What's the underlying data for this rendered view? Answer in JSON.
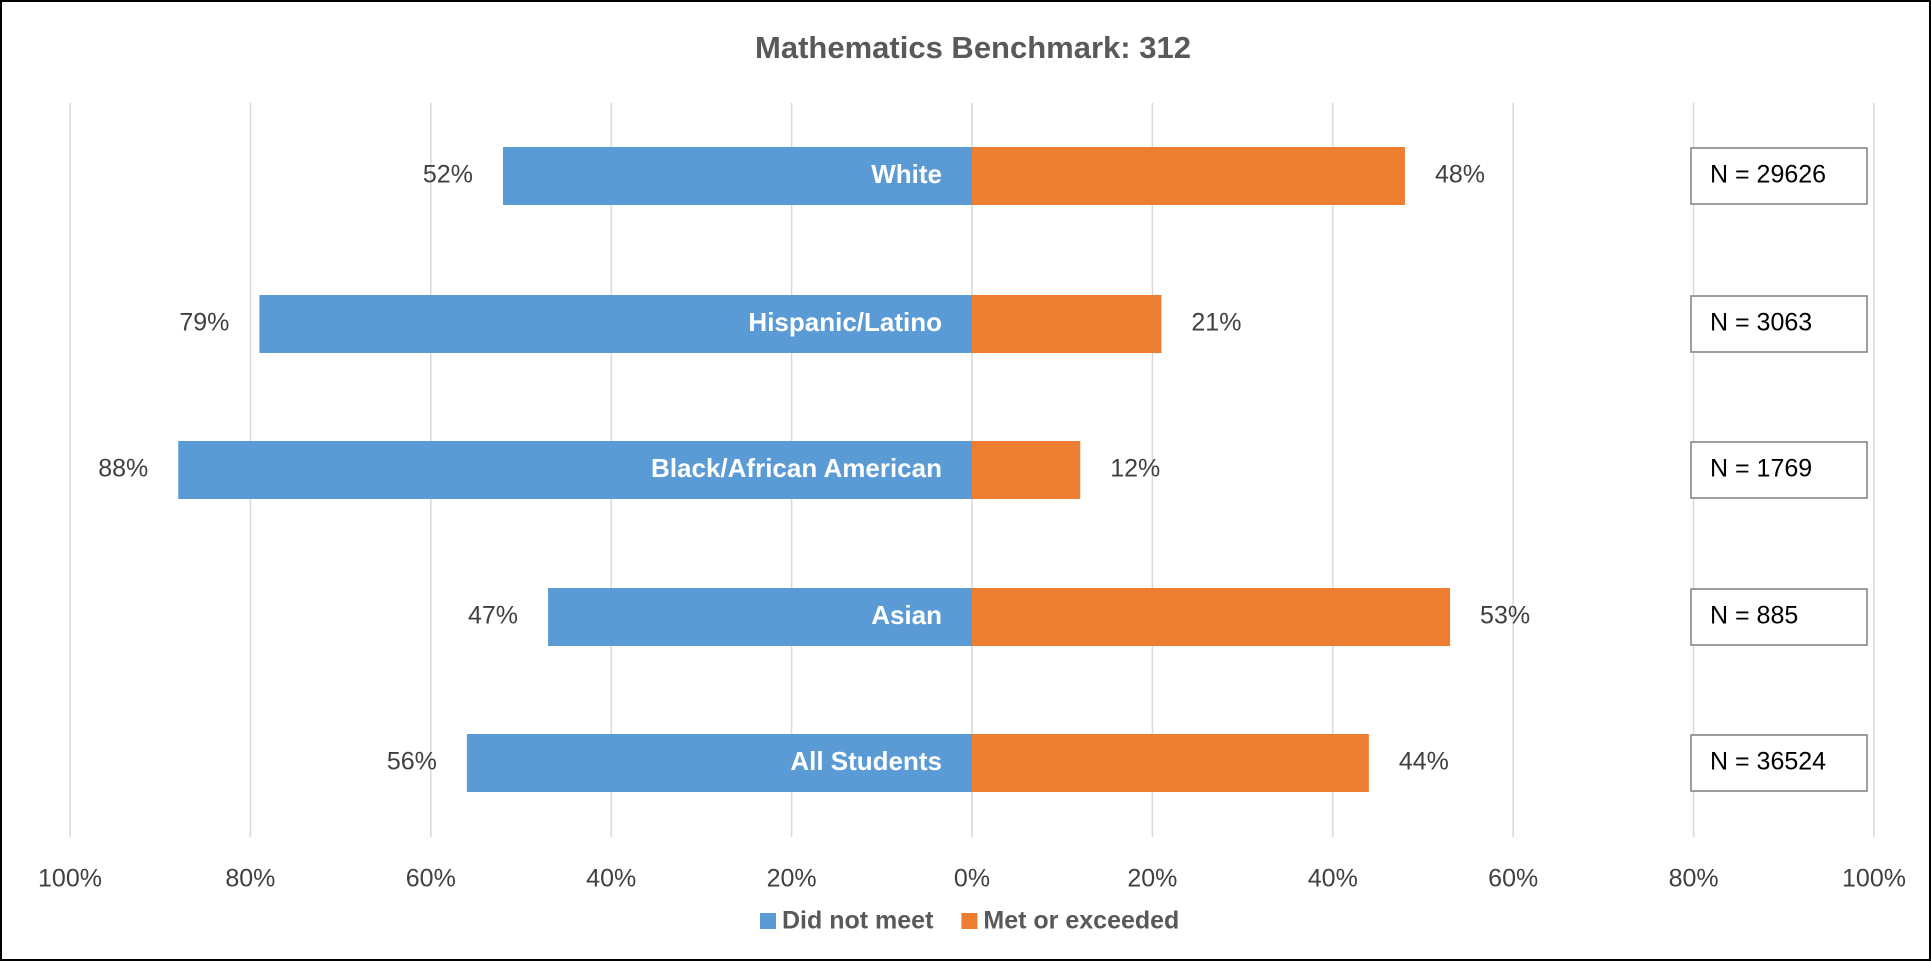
{
  "chart_data": {
    "type": "diverging-bar",
    "title": "Mathematics Benchmark: 312",
    "categories": [
      "White",
      "Hispanic/Latino",
      "Black/African American",
      "Asian",
      "All Students"
    ],
    "series": [
      {
        "name": "Did not meet",
        "color": "#5b9bd5",
        "values": [
          -52,
          -79,
          -88,
          -47,
          -56
        ],
        "value_labels": [
          "52%",
          "79%",
          "88%",
          "47%",
          "56%"
        ]
      },
      {
        "name": "Met or exceeded",
        "color": "#ed7d31",
        "values": [
          48,
          21,
          12,
          53,
          44
        ],
        "value_labels": [
          "48%",
          "21%",
          "12%",
          "53%",
          "44%"
        ]
      }
    ],
    "annotations": [
      "N = 29626",
      "N = 3063",
      "N = 1769",
      "N = 885",
      "N = 36524"
    ],
    "xlim": [
      -100,
      100
    ],
    "xticks": [
      {
        "value": -100,
        "label": "100%"
      },
      {
        "value": -80,
        "label": "80%"
      },
      {
        "value": -60,
        "label": "60%"
      },
      {
        "value": -40,
        "label": "40%"
      },
      {
        "value": -20,
        "label": "20%"
      },
      {
        "value": 0,
        "label": "0%"
      },
      {
        "value": 20,
        "label": "20%"
      },
      {
        "value": 40,
        "label": "40%"
      },
      {
        "value": 60,
        "label": "60%"
      },
      {
        "value": 80,
        "label": "80%"
      },
      {
        "value": 100,
        "label": "100%"
      }
    ],
    "grid": true,
    "legend": "bottom"
  }
}
